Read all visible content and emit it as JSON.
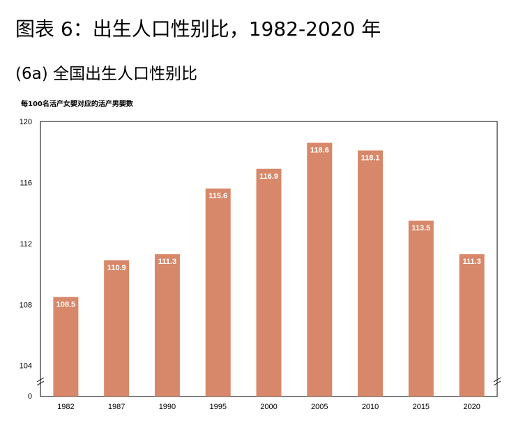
{
  "figure": {
    "title": "图表 6：出生人口性别比，1982-2020 年",
    "subtitle": "(6a) 全国出生人口性别比"
  },
  "chart_data": {
    "type": "bar",
    "title": "",
    "ylabel": "每100名活产女婴对应的活产男婴数",
    "xlabel": "",
    "categories": [
      "1982",
      "1987",
      "1990",
      "1995",
      "2000",
      "2005",
      "2010",
      "2015",
      "2020"
    ],
    "values": [
      108.5,
      110.9,
      111.3,
      115.6,
      116.9,
      118.6,
      118.1,
      113.5,
      111.3
    ],
    "ylim": [
      100,
      120
    ],
    "yticks": [
      120,
      116,
      112,
      108,
      104
    ],
    "y_axis_break": true,
    "y_base_label": "0",
    "data_labels": [
      "108.5",
      "110.9",
      "111.3",
      "115.6",
      "116.9",
      "118.6",
      "118.1",
      "113.5",
      "111.3"
    ],
    "bar_color": "#D8886A",
    "grid": false,
    "legend": "none"
  }
}
